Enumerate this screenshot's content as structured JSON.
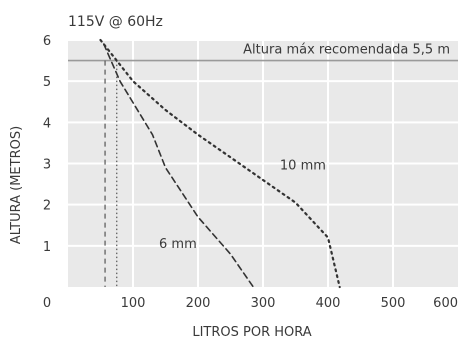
{
  "chart_data": {
    "type": "line",
    "subtitle": "115V @ 60Hz",
    "xlabel": "LITROS POR HORA",
    "ylabel": "ALTURA (METROS)",
    "xlim": [
      0,
      600
    ],
    "ylim": [
      0,
      6
    ],
    "grid": true,
    "xticks": [
      "0",
      "100",
      "200",
      "300",
      "400",
      "500",
      "600"
    ],
    "yticks": [
      "0",
      "1",
      "2",
      "3",
      "4",
      "5",
      "6"
    ],
    "series": [
      {
        "name": "10 mm",
        "style": "dotted",
        "points": [
          [
            50,
            6.0
          ],
          [
            100,
            5.0
          ],
          [
            150,
            4.3
          ],
          [
            200,
            3.7
          ],
          [
            250,
            3.15
          ],
          [
            300,
            2.6
          ],
          [
            350,
            2.05
          ],
          [
            400,
            1.2
          ],
          [
            418,
            0
          ]
        ]
      },
      {
        "name": "6 mm",
        "style": "dashed",
        "points": [
          [
            55,
            5.9
          ],
          [
            80,
            5.0
          ],
          [
            130,
            3.7
          ],
          [
            150,
            2.9
          ],
          [
            200,
            1.7
          ],
          [
            250,
            0.8
          ],
          [
            285,
            0
          ]
        ]
      }
    ],
    "reference_lines": [
      {
        "axis": "y",
        "value": 5.5,
        "label": "Altura máx recomendada 5,5 m",
        "style": "solid"
      },
      {
        "axis": "x",
        "value": 57,
        "style": "dashed"
      },
      {
        "axis": "x",
        "value": 75,
        "style": "dotted"
      }
    ],
    "colors": {
      "line": "#333333",
      "grid": "#e2e2e2",
      "plot_bg": "#e9e9e9",
      "ref_line": "#9a9a9a"
    }
  }
}
